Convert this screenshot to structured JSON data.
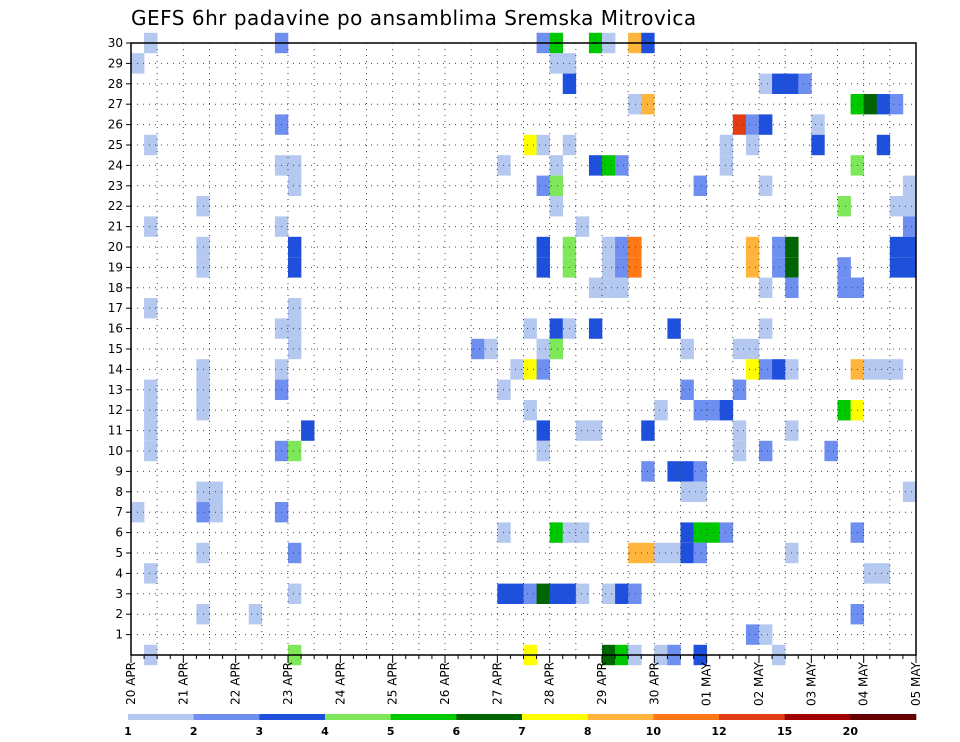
{
  "chart_data": {
    "type": "heatmap",
    "title": "GEFS 6hr padavine po ansamblima Sremska Mitrovica",
    "xlabel": "",
    "ylabel": "",
    "y_members": [
      0,
      30
    ],
    "y_ticks": [
      "1",
      "2",
      "3",
      "4",
      "5",
      "6",
      "7",
      "8",
      "9",
      "10",
      "11",
      "12",
      "13",
      "14",
      "15",
      "16",
      "17",
      "18",
      "19",
      "20",
      "21",
      "22",
      "23",
      "24",
      "25",
      "26",
      "27",
      "28",
      "29",
      "30"
    ],
    "x_range_steps": [
      0,
      60
    ],
    "x_tick_labels": [
      "20 APR",
      "21 APR",
      "22 APR",
      "23 APR",
      "24 APR",
      "25 APR",
      "26 APR",
      "27 APR",
      "28 APR",
      "29 APR",
      "30 APR",
      "01 MAY",
      "02 MAY",
      "03 MAY",
      "04 MAY",
      "05 MAY"
    ],
    "x_tick_steps": [
      0,
      4,
      8,
      12,
      16,
      20,
      24,
      28,
      32,
      36,
      40,
      44,
      48,
      52,
      56,
      60
    ],
    "grid": true,
    "legend_placement": "bottom",
    "legend_levels": [
      "1",
      "2",
      "3",
      "4",
      "5",
      "6",
      "7",
      "8",
      "10",
      "12",
      "15",
      "20"
    ],
    "legend_colors": [
      "#b4c8f0",
      "#6e8ff0",
      "#1e50dc",
      "#7ee85a",
      "#00c800",
      "#006400",
      "#ffff00",
      "#ffb43c",
      "#ff7814",
      "#e13c14",
      "#a00000",
      "#640000"
    ],
    "cells": [
      [
        30,
        1,
        1
      ],
      [
        30,
        11,
        2
      ],
      [
        30,
        31,
        2
      ],
      [
        30,
        32,
        5
      ],
      [
        30,
        35,
        5
      ],
      [
        30,
        36,
        1
      ],
      [
        30,
        38,
        8
      ],
      [
        30,
        39,
        3
      ],
      [
        29,
        0,
        1
      ],
      [
        29,
        32,
        1
      ],
      [
        29,
        33,
        1
      ],
      [
        28,
        33,
        3
      ],
      [
        28,
        48,
        1
      ],
      [
        28,
        49,
        3
      ],
      [
        28,
        50,
        3
      ],
      [
        28,
        51,
        2
      ],
      [
        27,
        38,
        1
      ],
      [
        27,
        39,
        8
      ],
      [
        27,
        55,
        5
      ],
      [
        27,
        56,
        6
      ],
      [
        27,
        57,
        3
      ],
      [
        27,
        58,
        2
      ],
      [
        26,
        11,
        2
      ],
      [
        26,
        46,
        10
      ],
      [
        26,
        47,
        2
      ],
      [
        26,
        48,
        3
      ],
      [
        26,
        52,
        1
      ],
      [
        25,
        1,
        1
      ],
      [
        25,
        30,
        7
      ],
      [
        25,
        31,
        1
      ],
      [
        25,
        33,
        1
      ],
      [
        25,
        45,
        1
      ],
      [
        25,
        47,
        1
      ],
      [
        25,
        52,
        3
      ],
      [
        25,
        57,
        3
      ],
      [
        24,
        11,
        1
      ],
      [
        24,
        12,
        1
      ],
      [
        24,
        28,
        1
      ],
      [
        24,
        32,
        1
      ],
      [
        24,
        35,
        3
      ],
      [
        24,
        36,
        5
      ],
      [
        24,
        37,
        2
      ],
      [
        24,
        45,
        1
      ],
      [
        24,
        55,
        4
      ],
      [
        23,
        12,
        1
      ],
      [
        23,
        31,
        2
      ],
      [
        23,
        32,
        4
      ],
      [
        23,
        43,
        2
      ],
      [
        23,
        48,
        1
      ],
      [
        23,
        59,
        1
      ],
      [
        22,
        5,
        1
      ],
      [
        22,
        32,
        1
      ],
      [
        22,
        54,
        4
      ],
      [
        22,
        58,
        1
      ],
      [
        22,
        59,
        1
      ],
      [
        21,
        1,
        1
      ],
      [
        21,
        11,
        1
      ],
      [
        21,
        34,
        1
      ],
      [
        21,
        59,
        2
      ],
      [
        20,
        5,
        1
      ],
      [
        20,
        12,
        3
      ],
      [
        20,
        31,
        3
      ],
      [
        20,
        33,
        4
      ],
      [
        20,
        36,
        1
      ],
      [
        20,
        37,
        2
      ],
      [
        20,
        38,
        9
      ],
      [
        20,
        47,
        8
      ],
      [
        20,
        49,
        2
      ],
      [
        20,
        50,
        6
      ],
      [
        20,
        58,
        3
      ],
      [
        20,
        59,
        3
      ],
      [
        19,
        5,
        1
      ],
      [
        19,
        12,
        3
      ],
      [
        19,
        31,
        3
      ],
      [
        19,
        33,
        4
      ],
      [
        19,
        36,
        1
      ],
      [
        19,
        37,
        2
      ],
      [
        19,
        38,
        9
      ],
      [
        19,
        47,
        8
      ],
      [
        19,
        49,
        2
      ],
      [
        19,
        50,
        6
      ],
      [
        19,
        54,
        2
      ],
      [
        19,
        58,
        3
      ],
      [
        19,
        59,
        3
      ],
      [
        18,
        35,
        1
      ],
      [
        18,
        36,
        1
      ],
      [
        18,
        37,
        1
      ],
      [
        18,
        48,
        1
      ],
      [
        18,
        50,
        2
      ],
      [
        18,
        54,
        2
      ],
      [
        18,
        55,
        2
      ],
      [
        17,
        1,
        1
      ],
      [
        17,
        12,
        1
      ],
      [
        16,
        11,
        1
      ],
      [
        16,
        12,
        1
      ],
      [
        16,
        30,
        1
      ],
      [
        16,
        32,
        3
      ],
      [
        16,
        33,
        1
      ],
      [
        16,
        35,
        3
      ],
      [
        16,
        41,
        3
      ],
      [
        16,
        48,
        1
      ],
      [
        15,
        12,
        1
      ],
      [
        15,
        26,
        2
      ],
      [
        15,
        27,
        1
      ],
      [
        15,
        31,
        1
      ],
      [
        15,
        32,
        4
      ],
      [
        15,
        42,
        1
      ],
      [
        15,
        46,
        1
      ],
      [
        15,
        47,
        1
      ],
      [
        14,
        5,
        1
      ],
      [
        14,
        11,
        1
      ],
      [
        14,
        29,
        1
      ],
      [
        14,
        30,
        7
      ],
      [
        14,
        31,
        2
      ],
      [
        14,
        47,
        7
      ],
      [
        14,
        48,
        2
      ],
      [
        14,
        49,
        3
      ],
      [
        14,
        50,
        1
      ],
      [
        14,
        55,
        8
      ],
      [
        14,
        56,
        1
      ],
      [
        14,
        57,
        1
      ],
      [
        14,
        58,
        1
      ],
      [
        13,
        1,
        1
      ],
      [
        13,
        5,
        1
      ],
      [
        13,
        11,
        2
      ],
      [
        13,
        28,
        1
      ],
      [
        13,
        42,
        2
      ],
      [
        13,
        46,
        2
      ],
      [
        12,
        1,
        1
      ],
      [
        12,
        5,
        1
      ],
      [
        12,
        30,
        1
      ],
      [
        12,
        40,
        1
      ],
      [
        12,
        43,
        2
      ],
      [
        12,
        44,
        2
      ],
      [
        12,
        45,
        3
      ],
      [
        12,
        54,
        5
      ],
      [
        12,
        55,
        7
      ],
      [
        11,
        1,
        1
      ],
      [
        11,
        13,
        3
      ],
      [
        11,
        31,
        3
      ],
      [
        11,
        34,
        1
      ],
      [
        11,
        35,
        1
      ],
      [
        11,
        39,
        3
      ],
      [
        11,
        46,
        1
      ],
      [
        11,
        50,
        1
      ],
      [
        10,
        1,
        1
      ],
      [
        10,
        11,
        2
      ],
      [
        10,
        12,
        4
      ],
      [
        10,
        31,
        1
      ],
      [
        10,
        46,
        1
      ],
      [
        10,
        48,
        2
      ],
      [
        10,
        53,
        2
      ],
      [
        9,
        39,
        2
      ],
      [
        9,
        41,
        3
      ],
      [
        9,
        42,
        3
      ],
      [
        9,
        43,
        2
      ],
      [
        8,
        5,
        1
      ],
      [
        8,
        6,
        1
      ],
      [
        8,
        42,
        1
      ],
      [
        8,
        43,
        1
      ],
      [
        8,
        59,
        1
      ],
      [
        7,
        0,
        1
      ],
      [
        7,
        5,
        2
      ],
      [
        7,
        6,
        1
      ],
      [
        7,
        11,
        2
      ],
      [
        6,
        28,
        1
      ],
      [
        6,
        32,
        5
      ],
      [
        6,
        33,
        1
      ],
      [
        6,
        34,
        1
      ],
      [
        6,
        42,
        3
      ],
      [
        6,
        43,
        5
      ],
      [
        6,
        44,
        5
      ],
      [
        6,
        45,
        2
      ],
      [
        6,
        55,
        2
      ],
      [
        5,
        5,
        1
      ],
      [
        5,
        12,
        2
      ],
      [
        5,
        38,
        8
      ],
      [
        5,
        39,
        8
      ],
      [
        5,
        40,
        1
      ],
      [
        5,
        41,
        1
      ],
      [
        5,
        42,
        3
      ],
      [
        5,
        43,
        2
      ],
      [
        5,
        50,
        1
      ],
      [
        4,
        1,
        1
      ],
      [
        4,
        56,
        1
      ],
      [
        4,
        57,
        1
      ],
      [
        3,
        12,
        1
      ],
      [
        3,
        28,
        3
      ],
      [
        3,
        29,
        3
      ],
      [
        3,
        30,
        2
      ],
      [
        3,
        31,
        6
      ],
      [
        3,
        32,
        3
      ],
      [
        3,
        33,
        3
      ],
      [
        3,
        34,
        1
      ],
      [
        3,
        36,
        1
      ],
      [
        3,
        37,
        3
      ],
      [
        3,
        38,
        2
      ],
      [
        2,
        5,
        1
      ],
      [
        2,
        9,
        1
      ],
      [
        2,
        55,
        2
      ],
      [
        1,
        47,
        2
      ],
      [
        1,
        48,
        1
      ],
      [
        0,
        1,
        1
      ],
      [
        0,
        12,
        4
      ],
      [
        0,
        30,
        7
      ],
      [
        0,
        36,
        6
      ],
      [
        0,
        37,
        5
      ],
      [
        0,
        38,
        1
      ],
      [
        0,
        40,
        1
      ],
      [
        0,
        41,
        2
      ],
      [
        0,
        43,
        3
      ],
      [
        0,
        49,
        1
      ]
    ]
  }
}
